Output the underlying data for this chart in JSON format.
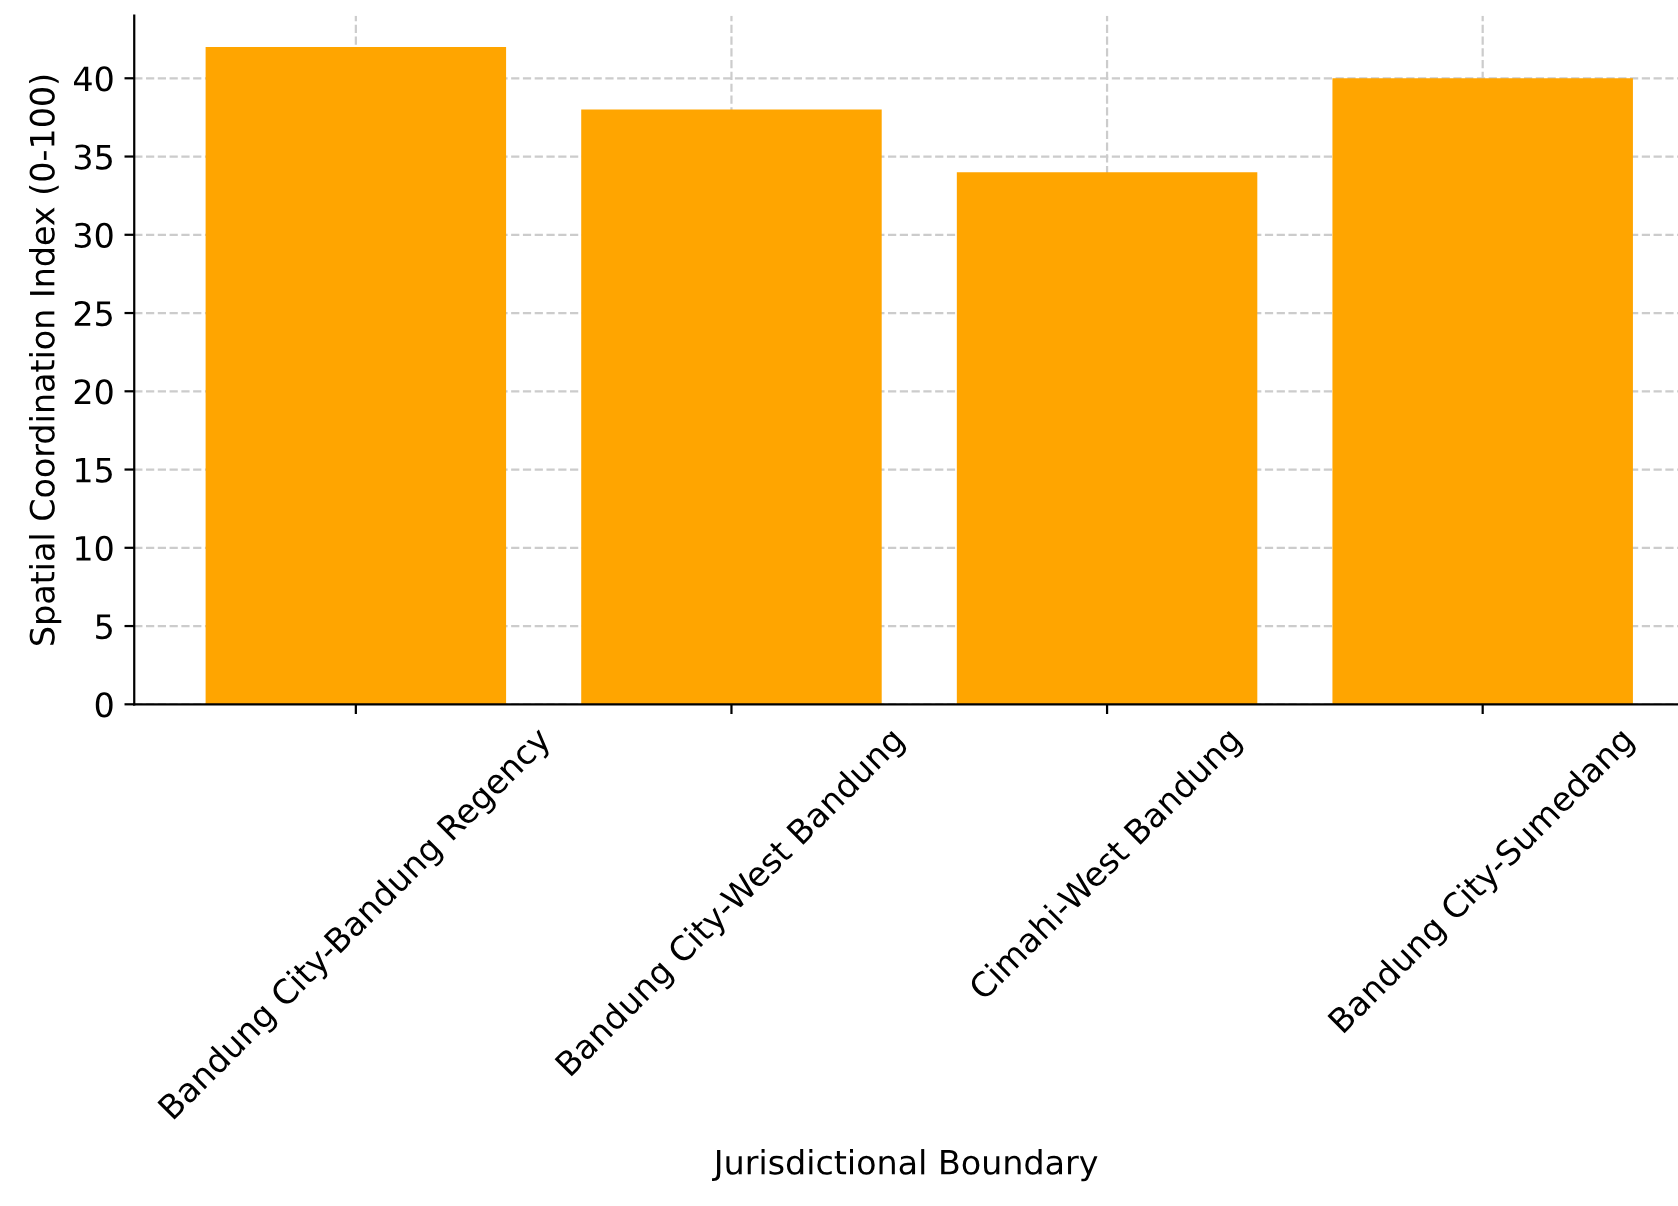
{
  "chart_data": {
    "type": "bar",
    "xlabel": "Jurisdictional Boundary",
    "ylabel": "Spatial Coordination Index (0-100)",
    "categories": [
      "Bandung City-Bandung Regency",
      "Bandung City-West Bandung",
      "Cimahi-West Bandung",
      "Bandung City-Sumedang"
    ],
    "values": [
      42,
      38,
      34,
      40
    ],
    "color": "#ffa500",
    "ylim": [
      0,
      44
    ],
    "yticks": [
      0,
      5,
      10,
      15,
      20,
      25,
      30,
      35,
      40
    ],
    "grid": true
  }
}
